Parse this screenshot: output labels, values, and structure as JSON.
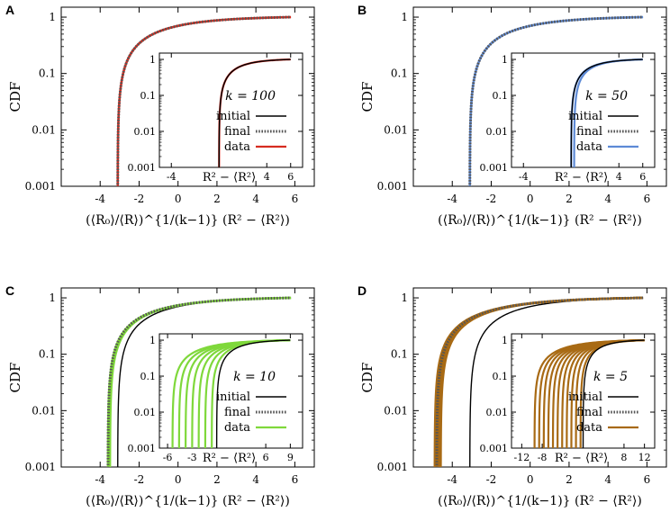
{
  "figure": {
    "y_axis_label": "CDF",
    "x_axis_label": "(⟨R₀⟩/⟨R⟩)^{1/(k−1)} (R² − ⟨R²⟩)",
    "inset_x_label": "R² − ⟨R²⟩",
    "legend_entries": [
      "initial",
      "final",
      "data"
    ],
    "colors": {
      "initial": "#000000",
      "final": "#555555",
      "A": "#d62c20",
      "B": "#5d8ad6",
      "C": "#7fd83b",
      "D": "#a86a14"
    }
  },
  "chart_data": [
    {
      "panel": "A",
      "type": "line",
      "k_label": "k = 100",
      "data_color": "#d62c20",
      "main": {
        "xlim": [
          -6,
          7
        ],
        "ylim": [
          0.001,
          1.5
        ],
        "yscale": "log",
        "xticks": [
          "-4",
          "-2",
          "0",
          "2",
          "4",
          "6"
        ],
        "yticks": [
          "0.001",
          "0.01",
          "0.1",
          "1"
        ],
        "xlabel": "(⟨R₀⟩/⟨R⟩)^{1/(k−1)} (R² − ⟨R²⟩)",
        "ylabel": "CDF",
        "series": [
          {
            "name": "initial",
            "x0": -3.1,
            "x_end": 5.8
          },
          {
            "name": "final",
            "x0": -3.1,
            "x_end": 5.8
          },
          {
            "name": "data",
            "x0s": [
              -3.1
            ],
            "x_end": 5.8
          }
        ]
      },
      "inset": {
        "xlim": [
          -5,
          7
        ],
        "ylim": [
          0.001,
          1.5
        ],
        "yscale": "log",
        "xticks": [
          "-4",
          "4",
          "6"
        ],
        "yticks": [
          "0.001",
          "0.01",
          "0.1",
          "1"
        ],
        "xlabel": "R² − ⟨R²⟩",
        "series": [
          {
            "name": "initial",
            "x0s": [
              0.0
            ],
            "x_end": 6.0
          },
          {
            "name": "data",
            "x0s": [
              0.0
            ],
            "x_end": 6.0
          }
        ]
      }
    },
    {
      "panel": "B",
      "type": "line",
      "k_label": "k = 50",
      "data_color": "#5d8ad6",
      "main": {
        "xlim": [
          -6,
          7
        ],
        "ylim": [
          0.001,
          1.5
        ],
        "yscale": "log",
        "xticks": [
          "-4",
          "-2",
          "0",
          "2",
          "4",
          "6"
        ],
        "yticks": [
          "0.001",
          "0.01",
          "0.1",
          "1"
        ],
        "xlabel": "(⟨R₀⟩/⟨R⟩)^{1/(k−1)} (R² − ⟨R²⟩)",
        "ylabel": "CDF",
        "series": [
          {
            "name": "initial",
            "x0": -3.1,
            "x_end": 5.8
          },
          {
            "name": "final",
            "x0": -3.1,
            "x_end": 5.8
          },
          {
            "name": "data",
            "x0s": [
              -3.1
            ],
            "x_end": 5.8
          }
        ]
      },
      "inset": {
        "xlim": [
          -5,
          7
        ],
        "ylim": [
          0.001,
          1.5
        ],
        "yscale": "log",
        "xticks": [
          "-4",
          "4",
          "6"
        ],
        "yticks": [
          "0.001",
          "0.01",
          "0.1",
          "1"
        ],
        "xlabel": "R² − ⟨R²⟩",
        "series": [
          {
            "name": "initial",
            "x0s": [
              0.0
            ],
            "x_end": 6.0
          },
          {
            "name": "data",
            "x0s": [
              0.0,
              0.25
            ],
            "x_end": 6.0
          }
        ]
      }
    },
    {
      "panel": "C",
      "type": "line",
      "k_label": "k = 10",
      "data_color": "#7fd83b",
      "main": {
        "xlim": [
          -6,
          7
        ],
        "ylim": [
          0.001,
          1.5
        ],
        "yscale": "log",
        "xticks": [
          "-4",
          "-2",
          "0",
          "2",
          "4",
          "6"
        ],
        "yticks": [
          "0.001",
          "0.01",
          "0.1",
          "1"
        ],
        "xlabel": "(⟨R₀⟩/⟨R⟩)^{1/(k−1)} (R² − ⟨R²⟩)",
        "ylabel": "CDF",
        "series": [
          {
            "name": "initial",
            "x0": -3.1,
            "x_end": 5.8
          },
          {
            "name": "final",
            "x0": -3.6,
            "x_end": 5.8
          },
          {
            "name": "data",
            "x0s": [
              -3.6,
              -3.5
            ],
            "x_end": 5.8
          }
        ]
      },
      "inset": {
        "xlim": [
          -7,
          10.5
        ],
        "ylim": [
          0.001,
          1.5
        ],
        "yscale": "log",
        "xticks": [
          "-6",
          "-3",
          "6",
          "9"
        ],
        "yticks": [
          "0.001",
          "0.01",
          "0.1",
          "1"
        ],
        "xlabel": "R² − ⟨R²⟩",
        "series": [
          {
            "name": "initial",
            "x0s": [
              0.0
            ],
            "x_end": 9.0
          },
          {
            "name": "data",
            "x0s": [
              -5.4,
              -4.6,
              -3.8,
              -3.0,
              -2.2,
              -1.4,
              -0.6
            ],
            "x_end": 9.0
          }
        ]
      }
    },
    {
      "panel": "D",
      "type": "line",
      "k_label": "k = 5",
      "data_color": "#a86a14",
      "main": {
        "xlim": [
          -6,
          7
        ],
        "ylim": [
          0.001,
          1.5
        ],
        "yscale": "log",
        "xticks": [
          "-4",
          "-2",
          "0",
          "2",
          "4",
          "6"
        ],
        "yticks": [
          "0.001",
          "0.01",
          "0.1",
          "1"
        ],
        "xlabel": "(⟨R₀⟩/⟨R⟩)^{1/(k−1)} (R² − ⟨R²⟩)",
        "ylabel": "CDF",
        "series": [
          {
            "name": "initial",
            "x0": -3.1,
            "x_end": 5.8
          },
          {
            "name": "final",
            "x0": -4.8,
            "x_end": 5.8
          },
          {
            "name": "data",
            "x0s": [
              -4.9,
              -4.8,
              -4.7,
              -4.6
            ],
            "x_end": 5.8
          }
        ]
      },
      "inset": {
        "xlim": [
          -14,
          14
        ],
        "ylim": [
          0.001,
          1.5
        ],
        "yscale": "log",
        "xticks": [
          "-12",
          "-8",
          "8",
          "12"
        ],
        "yticks": [
          "0.001",
          "0.01",
          "0.1",
          "1"
        ],
        "xlabel": "R² − ⟨R²⟩",
        "series": [
          {
            "name": "initial",
            "x0s": [
              0.0
            ],
            "x_end": 12.0
          },
          {
            "name": "data",
            "x0s": [
              -9.5,
              -8.6,
              -7.7,
              -6.8,
              -5.9,
              -5.0,
              -4.1,
              -3.2,
              -2.3,
              -1.4,
              -0.5
            ],
            "x_end": 12.0
          }
        ]
      }
    }
  ]
}
